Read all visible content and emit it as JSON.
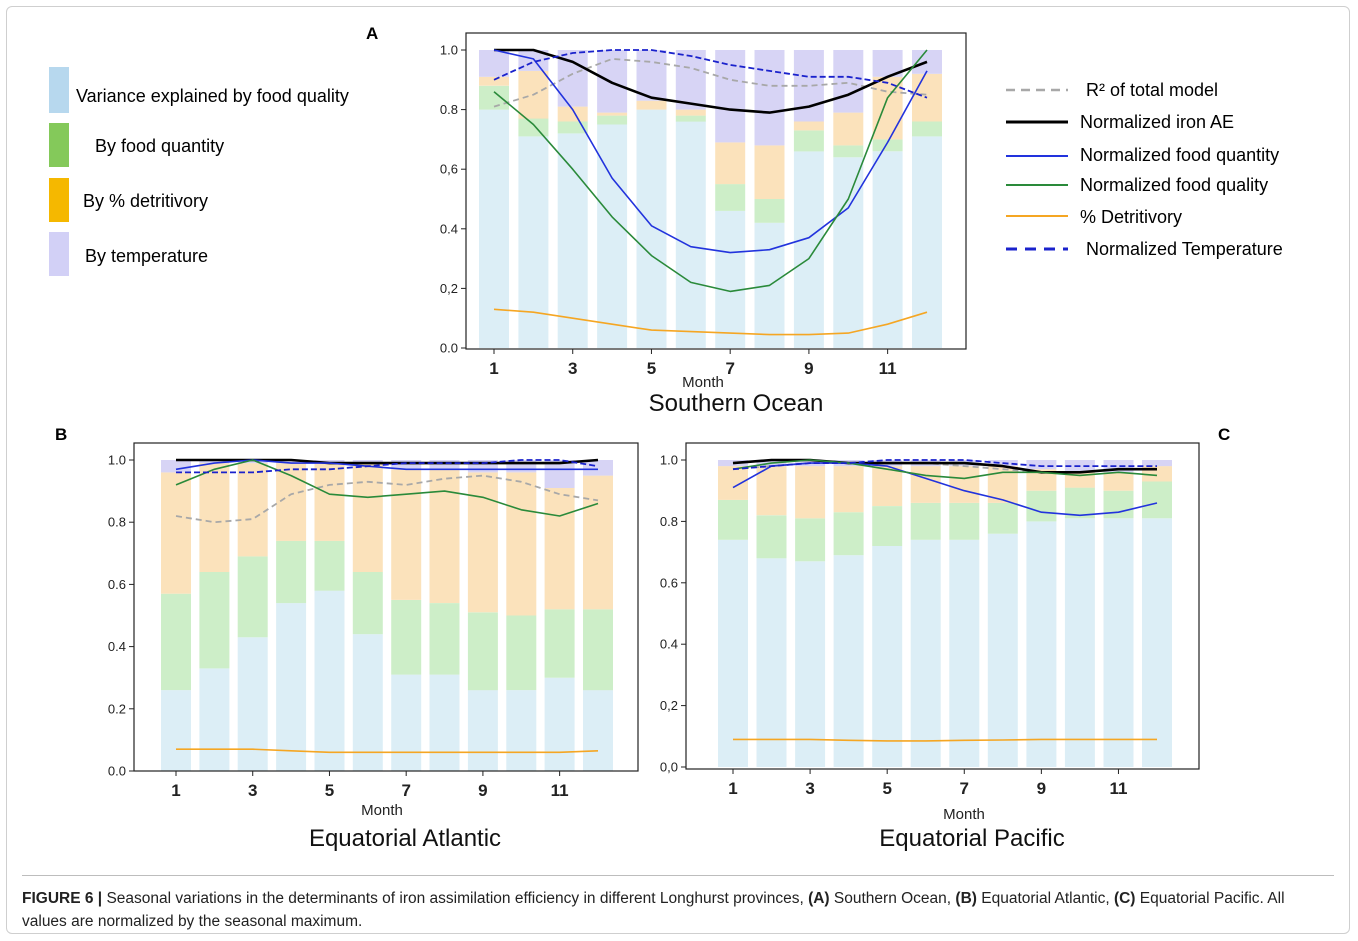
{
  "colors": {
    "food_quality_var": "#dceef6",
    "food_quantity_var": "#cdeec8",
    "detritivory_var": "#fbe2bb",
    "temperature_var": "#d7d4f5",
    "legend_quality_swatch": "#b7d8ee",
    "legend_quantity_swatch": "#84c95a",
    "legend_detritivory_swatch": "#f5b800",
    "legend_temperature_swatch": "#d2d0f6",
    "r2": "#a8a8a8",
    "iron_ae": "#000000",
    "food_quantity_line": "#2233dd",
    "food_quality_line": "#2a8a3a",
    "detritivory_line": "#f5a623",
    "temperature_line": "#1a22cc"
  },
  "bar_legend": {
    "items": [
      {
        "label": "Variance explained by food quality",
        "color_key": "legend_quality_swatch"
      },
      {
        "label": "By food quantity",
        "color_key": "legend_quantity_swatch"
      },
      {
        "label": "By % detritivory",
        "color_key": "legend_detritivory_swatch"
      },
      {
        "label": "By temperature",
        "color_key": "legend_temperature_swatch"
      }
    ]
  },
  "line_legend": {
    "items": [
      {
        "label": "R² of total model",
        "style": "dashed-gray"
      },
      {
        "label": "Normalized iron AE",
        "style": "solid-black"
      },
      {
        "label": "Normalized food quantity",
        "style": "solid-blue"
      },
      {
        "label": "Normalized food quality",
        "style": "solid-green"
      },
      {
        "label": "% Detritivory",
        "style": "solid-orange"
      },
      {
        "label": "Normalized Temperature",
        "style": "dashed-blue"
      }
    ]
  },
  "caption": {
    "figure_label": "FIGURE 6 |",
    "text_1": " Seasonal variations in the determinants of iron assimilation efficiency in different Longhurst provinces, ",
    "a": "(A)",
    "text_a": " Southern Ocean, ",
    "b": "(B)",
    "text_b": " Equatorial Atlantic, ",
    "c": "(C)",
    "text_c": " Equatorial Pacific. All values are normalized by the seasonal maximum."
  },
  "chart_data": [
    {
      "panel": "A",
      "type": "bar",
      "stacked": true,
      "title": "Southern Ocean",
      "xlabel": "Month",
      "ylabel": "",
      "ylim": [
        0,
        1.0
      ],
      "y_ticks": [
        "0.0",
        "0,2",
        "0.4",
        "0,6",
        "0.8",
        "1.0"
      ],
      "x_ticks": [
        "1",
        "3",
        "5",
        "7",
        "9",
        "11"
      ],
      "categories": [
        1,
        2,
        3,
        4,
        5,
        6,
        7,
        8,
        9,
        10,
        11,
        12
      ],
      "series": [
        {
          "name": "Variance explained by food quality",
          "values": [
            0.8,
            0.71,
            0.72,
            0.75,
            0.8,
            0.76,
            0.46,
            0.42,
            0.66,
            0.64,
            0.66,
            0.71
          ]
        },
        {
          "name": "By food quantity",
          "values": [
            0.08,
            0.06,
            0.04,
            0.03,
            0.0,
            0.02,
            0.09,
            0.08,
            0.07,
            0.04,
            0.04,
            0.05
          ]
        },
        {
          "name": "By % detritivory",
          "values": [
            0.03,
            0.16,
            0.05,
            0.01,
            0.03,
            0.02,
            0.14,
            0.18,
            0.03,
            0.11,
            0.21,
            0.16
          ]
        },
        {
          "name": "By temperature",
          "values": [
            0.09,
            0.07,
            0.19,
            0.21,
            0.17,
            0.2,
            0.31,
            0.32,
            0.24,
            0.21,
            0.09,
            0.08
          ]
        }
      ],
      "lines": [
        {
          "name": "R² of total model",
          "values": [
            0.81,
            0.85,
            0.92,
            0.97,
            0.96,
            0.94,
            0.9,
            0.88,
            0.88,
            0.89,
            0.86,
            0.85
          ]
        },
        {
          "name": "Normalized iron AE",
          "values": [
            1.0,
            1.0,
            0.96,
            0.89,
            0.84,
            0.82,
            0.8,
            0.79,
            0.81,
            0.85,
            0.91,
            0.96
          ]
        },
        {
          "name": "Normalized food quantity",
          "values": [
            1.0,
            0.97,
            0.8,
            0.57,
            0.41,
            0.34,
            0.32,
            0.33,
            0.37,
            0.47,
            0.69,
            0.93
          ]
        },
        {
          "name": "Normalized food quality",
          "values": [
            0.86,
            0.75,
            0.6,
            0.44,
            0.31,
            0.22,
            0.19,
            0.21,
            0.3,
            0.5,
            0.84,
            1.0
          ]
        },
        {
          "name": "% Detritivory",
          "values": [
            0.13,
            0.12,
            0.1,
            0.08,
            0.06,
            0.055,
            0.05,
            0.045,
            0.045,
            0.05,
            0.08,
            0.12
          ]
        },
        {
          "name": "Normalized Temperature",
          "values": [
            0.9,
            0.96,
            0.99,
            1.0,
            1.0,
            0.98,
            0.95,
            0.93,
            0.91,
            0.91,
            0.89,
            0.84
          ]
        }
      ]
    },
    {
      "panel": "B",
      "type": "bar",
      "stacked": true,
      "title": "Equatorial Atlantic",
      "xlabel": "Month",
      "ylabel": "",
      "ylim": [
        0,
        1.0
      ],
      "y_ticks": [
        "0.0",
        "0.2",
        "0.4",
        "0.6",
        "0.8",
        "1.0"
      ],
      "x_ticks": [
        "1",
        "3",
        "5",
        "7",
        "9",
        "11"
      ],
      "categories": [
        1,
        2,
        3,
        4,
        5,
        6,
        7,
        8,
        9,
        10,
        11,
        12
      ],
      "series": [
        {
          "name": "Variance explained by food quality",
          "values": [
            0.26,
            0.33,
            0.43,
            0.54,
            0.58,
            0.44,
            0.31,
            0.31,
            0.26,
            0.26,
            0.3,
            0.26
          ]
        },
        {
          "name": "By food quantity",
          "values": [
            0.31,
            0.31,
            0.26,
            0.2,
            0.16,
            0.2,
            0.24,
            0.23,
            0.25,
            0.24,
            0.22,
            0.26
          ]
        },
        {
          "name": "By % detritivory",
          "values": [
            0.39,
            0.35,
            0.3,
            0.25,
            0.25,
            0.35,
            0.42,
            0.43,
            0.45,
            0.46,
            0.39,
            0.43
          ]
        },
        {
          "name": "By temperature",
          "values": [
            0.04,
            0.01,
            0.01,
            0.01,
            0.01,
            0.01,
            0.03,
            0.03,
            0.04,
            0.04,
            0.09,
            0.05
          ]
        }
      ],
      "lines": [
        {
          "name": "R² of total model",
          "values": [
            0.82,
            0.8,
            0.81,
            0.89,
            0.92,
            0.93,
            0.92,
            0.94,
            0.95,
            0.93,
            0.89,
            0.87
          ]
        },
        {
          "name": "Normalized iron AE",
          "values": [
            1.0,
            1.0,
            1.0,
            1.0,
            0.99,
            0.99,
            0.99,
            0.99,
            0.99,
            0.99,
            0.99,
            1.0
          ]
        },
        {
          "name": "Normalized food quantity",
          "values": [
            0.97,
            0.99,
            1.0,
            0.99,
            0.99,
            0.98,
            0.97,
            0.97,
            0.97,
            0.97,
            0.97,
            0.97
          ]
        },
        {
          "name": "Normalized food quality",
          "values": [
            0.92,
            0.97,
            1.0,
            0.95,
            0.89,
            0.88,
            0.89,
            0.9,
            0.88,
            0.84,
            0.82,
            0.86
          ]
        },
        {
          "name": "% Detritivory",
          "values": [
            0.07,
            0.07,
            0.07,
            0.065,
            0.06,
            0.06,
            0.06,
            0.06,
            0.06,
            0.06,
            0.06,
            0.065
          ]
        },
        {
          "name": "Normalized Temperature",
          "values": [
            0.96,
            0.96,
            0.96,
            0.97,
            0.97,
            0.98,
            0.99,
            0.99,
            0.99,
            1.0,
            1.0,
            0.98
          ]
        }
      ]
    },
    {
      "panel": "C",
      "type": "bar",
      "stacked": true,
      "title": "Equatorial Pacific",
      "xlabel": "Month",
      "ylabel": "",
      "ylim": [
        0,
        1.0
      ],
      "y_ticks": [
        "0,0",
        "0,2",
        "0.4",
        "0.6",
        "0.8",
        "1.0"
      ],
      "x_ticks": [
        "1",
        "3",
        "5",
        "7",
        "9",
        "11"
      ],
      "categories": [
        1,
        2,
        3,
        4,
        5,
        6,
        7,
        8,
        9,
        10,
        11,
        12
      ],
      "series": [
        {
          "name": "Variance explained by food quality",
          "values": [
            0.74,
            0.68,
            0.67,
            0.69,
            0.72,
            0.74,
            0.74,
            0.76,
            0.8,
            0.81,
            0.81,
            0.81
          ]
        },
        {
          "name": "By food quantity",
          "values": [
            0.13,
            0.14,
            0.14,
            0.14,
            0.13,
            0.12,
            0.12,
            0.1,
            0.1,
            0.1,
            0.09,
            0.12
          ]
        },
        {
          "name": "By % detritivory",
          "values": [
            0.11,
            0.16,
            0.17,
            0.15,
            0.13,
            0.12,
            0.12,
            0.12,
            0.07,
            0.05,
            0.06,
            0.05
          ]
        },
        {
          "name": "By temperature",
          "values": [
            0.02,
            0.02,
            0.02,
            0.02,
            0.02,
            0.02,
            0.02,
            0.02,
            0.03,
            0.04,
            0.04,
            0.02
          ]
        }
      ],
      "lines": [
        {
          "name": "R² of total model",
          "values": [
            0.97,
            0.98,
            0.99,
            0.99,
            0.99,
            0.99,
            0.98,
            0.97,
            0.96,
            0.96,
            0.97,
            0.97
          ]
        },
        {
          "name": "Normalized iron AE",
          "values": [
            0.99,
            1.0,
            1.0,
            0.99,
            0.99,
            0.99,
            0.99,
            0.98,
            0.96,
            0.96,
            0.97,
            0.97
          ]
        },
        {
          "name": "Normalized food quantity",
          "values": [
            0.91,
            0.98,
            0.99,
            0.99,
            0.98,
            0.94,
            0.9,
            0.87,
            0.83,
            0.82,
            0.83,
            0.86
          ]
        },
        {
          "name": "Normalized food quality",
          "values": [
            0.97,
            0.99,
            1.0,
            0.99,
            0.97,
            0.95,
            0.94,
            0.96,
            0.96,
            0.95,
            0.96,
            0.95
          ]
        },
        {
          "name": "% Detritivory",
          "values": [
            0.09,
            0.09,
            0.09,
            0.087,
            0.085,
            0.085,
            0.087,
            0.088,
            0.09,
            0.09,
            0.09,
            0.09
          ]
        },
        {
          "name": "Normalized Temperature",
          "values": [
            0.97,
            0.98,
            0.99,
            0.99,
            1.0,
            1.0,
            1.0,
            0.99,
            0.98,
            0.98,
            0.98,
            0.98
          ]
        }
      ]
    }
  ]
}
